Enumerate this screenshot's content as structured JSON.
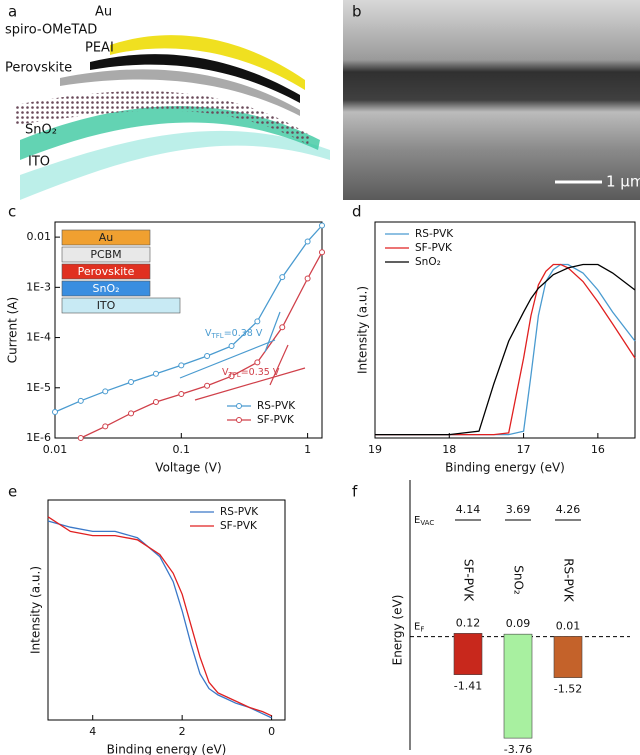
{
  "panel_labels": [
    "a",
    "b",
    "c",
    "d",
    "e",
    "f"
  ],
  "illustration": {
    "layers": [
      "Au",
      "spiro-OMeTAD",
      "PEAI",
      "Perovskite",
      "SnO₂",
      "ITO"
    ]
  },
  "micrograph": {
    "scale_bar": "1 μm"
  },
  "chart_data": [
    {
      "type": "line",
      "xlabel": "Voltage (V)",
      "ylabel": "Current (A)",
      "xlog": true,
      "ylog": true,
      "marker": "circle",
      "legend": "lower right",
      "xlim": [
        0.01,
        1.3
      ],
      "ylim": [
        1e-06,
        0.02
      ],
      "xticks": [
        0.01,
        0.1,
        1
      ],
      "yticks": [
        {
          "value": 1e-06,
          "label": "1E-6"
        },
        {
          "value": 1e-05,
          "label": "1E-5"
        },
        {
          "value": 0.0001,
          "label": "1E-4"
        },
        {
          "value": 0.001,
          "label": "1E-3"
        },
        0.01
      ],
      "x": [
        0.01,
        0.016,
        0.025,
        0.04,
        0.063,
        0.1,
        0.16,
        0.25,
        0.4,
        0.63,
        1.0,
        1.3
      ],
      "series": [
        {
          "name": "RS-PVK",
          "color": "#4a9bd0",
          "values": [
            3.3e-06,
            5.5e-06,
            8.5e-06,
            1.3e-05,
            1.9e-05,
            2.8e-05,
            4.3e-05,
            6.8e-05,
            0.00021,
            0.0016,
            0.0082,
            0.017
          ]
        },
        {
          "name": "SF-PVK",
          "color": "#d0404a",
          "values": [
            null,
            1e-06,
            1.7e-06,
            3.1e-06,
            5.2e-06,
            7.5e-06,
            1.1e-05,
            1.7e-05,
            3.2e-05,
            0.00016,
            0.0015,
            0.005
          ]
        }
      ],
      "annotations": [
        {
          "text": "V",
          "sub": "TFL",
          "rest": "=0.38 V",
          "color": "#4a9bd0"
        },
        {
          "text": "V",
          "sub": "TFL",
          "rest": "=0.35 V",
          "color": "#d0404a"
        }
      ],
      "inset_layers": [
        {
          "name": "Au",
          "color": "#f0a030"
        },
        {
          "name": "PCBM",
          "color": "#e8e8e8"
        },
        {
          "name": "Perovskite",
          "color": "#e03020"
        },
        {
          "name": "SnO₂",
          "color": "#3a8ee0"
        },
        {
          "name": "ITO",
          "color": "#c8eaf4"
        }
      ]
    },
    {
      "type": "line",
      "xlabel": "Binding energy (eV)",
      "ylabel": "Intensity (a.u.)",
      "legend": "upper left",
      "xlim": [
        19,
        15.5
      ],
      "ylim": [
        -0.02,
        1.25
      ],
      "xticks": [
        19,
        18,
        17,
        16
      ],
      "x": [
        19,
        18,
        17.6,
        17.4,
        17.2,
        17.0,
        16.9,
        16.8,
        16.7,
        16.6,
        16.5,
        16.4,
        16.2,
        16.0,
        15.8,
        15.5
      ],
      "series": [
        {
          "name": "RS-PVK",
          "color": "#4a9bd0",
          "values": [
            0,
            0,
            0,
            0,
            0,
            0.02,
            0.35,
            0.7,
            0.9,
            0.97,
            1,
            1,
            0.95,
            0.85,
            0.72,
            0.55
          ]
        },
        {
          "name": "SF-PVK",
          "color": "#e02020",
          "values": [
            0,
            0,
            0,
            0,
            0.01,
            0.45,
            0.7,
            0.88,
            0.96,
            1,
            1,
            0.98,
            0.9,
            0.78,
            0.65,
            0.45
          ]
        },
        {
          "name": "SnO₂",
          "color": "#000000",
          "values": [
            0,
            0,
            0.02,
            0.3,
            0.55,
            0.72,
            0.8,
            0.86,
            0.9,
            0.94,
            0.96,
            0.98,
            1,
            1,
            0.95,
            0.85
          ]
        }
      ]
    },
    {
      "type": "line",
      "xlabel": "Binding energy (eV)",
      "ylabel": "Intensity (a.u.)",
      "legend": "upper right",
      "xlim": [
        5,
        -0.3
      ],
      "ylim": [
        0,
        1.05
      ],
      "xticks": [
        4,
        2,
        0
      ],
      "x": [
        5,
        4.5,
        4,
        3.5,
        3,
        2.5,
        2.2,
        2.0,
        1.8,
        1.6,
        1.4,
        1.2,
        1.0,
        0.8,
        0.5,
        0.2,
        0
      ],
      "series": [
        {
          "name": "RS-PVK",
          "color": "#3a78c8",
          "values": [
            0.95,
            0.92,
            0.9,
            0.9,
            0.87,
            0.78,
            0.66,
            0.52,
            0.36,
            0.22,
            0.15,
            0.12,
            0.1,
            0.08,
            0.06,
            0.03,
            0.01
          ]
        },
        {
          "name": "SF-PVK",
          "color": "#e02020",
          "values": [
            0.97,
            0.9,
            0.88,
            0.88,
            0.86,
            0.79,
            0.7,
            0.6,
            0.45,
            0.3,
            0.18,
            0.13,
            0.11,
            0.09,
            0.06,
            0.04,
            0.02
          ]
        }
      ]
    },
    {
      "type": "levels",
      "ylabel": "Energy (eV)",
      "ylim": [
        -4.2,
        5.8
      ],
      "categories": [
        "SF-PVK",
        "SnO₂",
        "RS-PVK"
      ],
      "colors": [
        "#c8281c",
        "#a8f0a0",
        "#c4622a"
      ],
      "evac": [
        4.14,
        3.69,
        4.26
      ],
      "tops": [
        0.12,
        0.09,
        0.01
      ],
      "bottoms": [
        -1.41,
        -3.76,
        -1.52
      ],
      "evac_label": {
        "text": "E",
        "sub": "VAC"
      },
      "ef_label": {
        "text": "E",
        "sub": "F"
      }
    }
  ]
}
